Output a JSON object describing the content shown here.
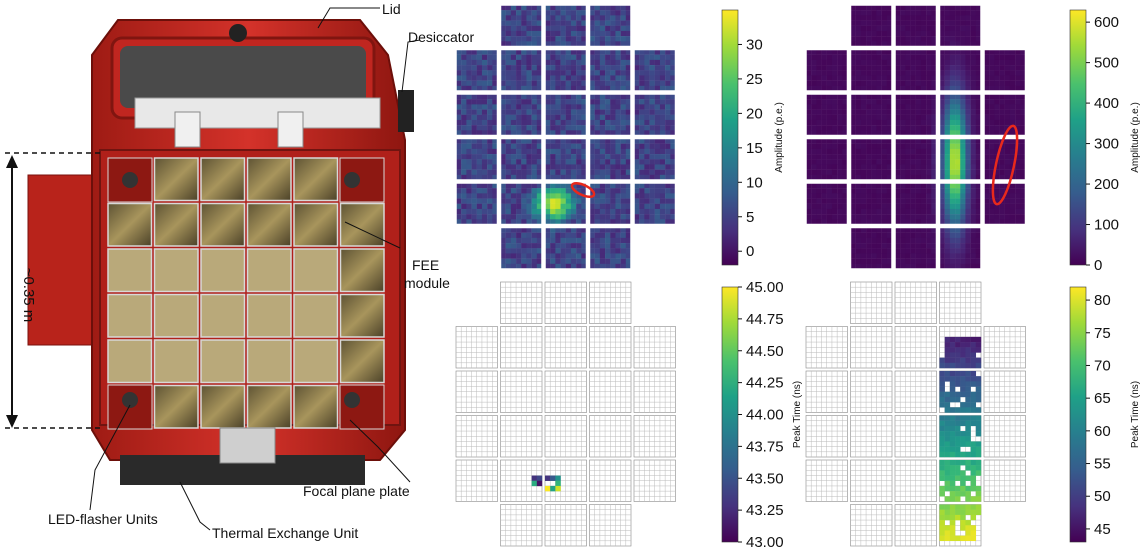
{
  "photo": {
    "labels": {
      "lid": "Lid",
      "desiccator": "Desiccator",
      "fee": "FEE",
      "fee2": "module",
      "focal": "Focal plane plate",
      "led": "LED-flasher Units",
      "thermal": "Thermal Exchange Unit",
      "size": "~0.35 m"
    }
  },
  "panels": [
    {
      "id": "amp-1",
      "colorbar_label": "Amplitude (p.e.)",
      "ticks": [
        "30",
        "25",
        "20",
        "15",
        "10",
        "5",
        "0"
      ],
      "tick_values": [
        30,
        25,
        20,
        15,
        10,
        5,
        0
      ],
      "range": [
        -2,
        35
      ]
    },
    {
      "id": "amp-2",
      "colorbar_label": "Amplitude (p.e.)",
      "ticks": [
        "600",
        "500",
        "400",
        "300",
        "200",
        "100",
        "0"
      ],
      "tick_values": [
        600,
        500,
        400,
        300,
        200,
        100,
        0
      ],
      "range": [
        0,
        630
      ]
    },
    {
      "id": "time-1",
      "colorbar_label": "Peak Time (ns)",
      "ticks": [
        "45.00",
        "44.75",
        "44.50",
        "44.25",
        "44.00",
        "43.75",
        "43.50",
        "43.25",
        "43.00"
      ],
      "tick_values": [
        45.0,
        44.75,
        44.5,
        44.25,
        44.0,
        43.75,
        43.5,
        43.25,
        43.0
      ],
      "range": [
        43.0,
        45.0
      ]
    },
    {
      "id": "time-2",
      "colorbar_label": "Peak Time (ns)",
      "ticks": [
        "80",
        "75",
        "70",
        "65",
        "60",
        "55",
        "50",
        "45"
      ],
      "tick_values": [
        80,
        75,
        70,
        65,
        60,
        55,
        50,
        45
      ],
      "range": [
        43,
        82
      ]
    }
  ],
  "colors": {
    "camera_red": "#c8281e",
    "viridis_low": "#440154",
    "viridis_high": "#fde725",
    "ellipse": "#e8291c"
  }
}
